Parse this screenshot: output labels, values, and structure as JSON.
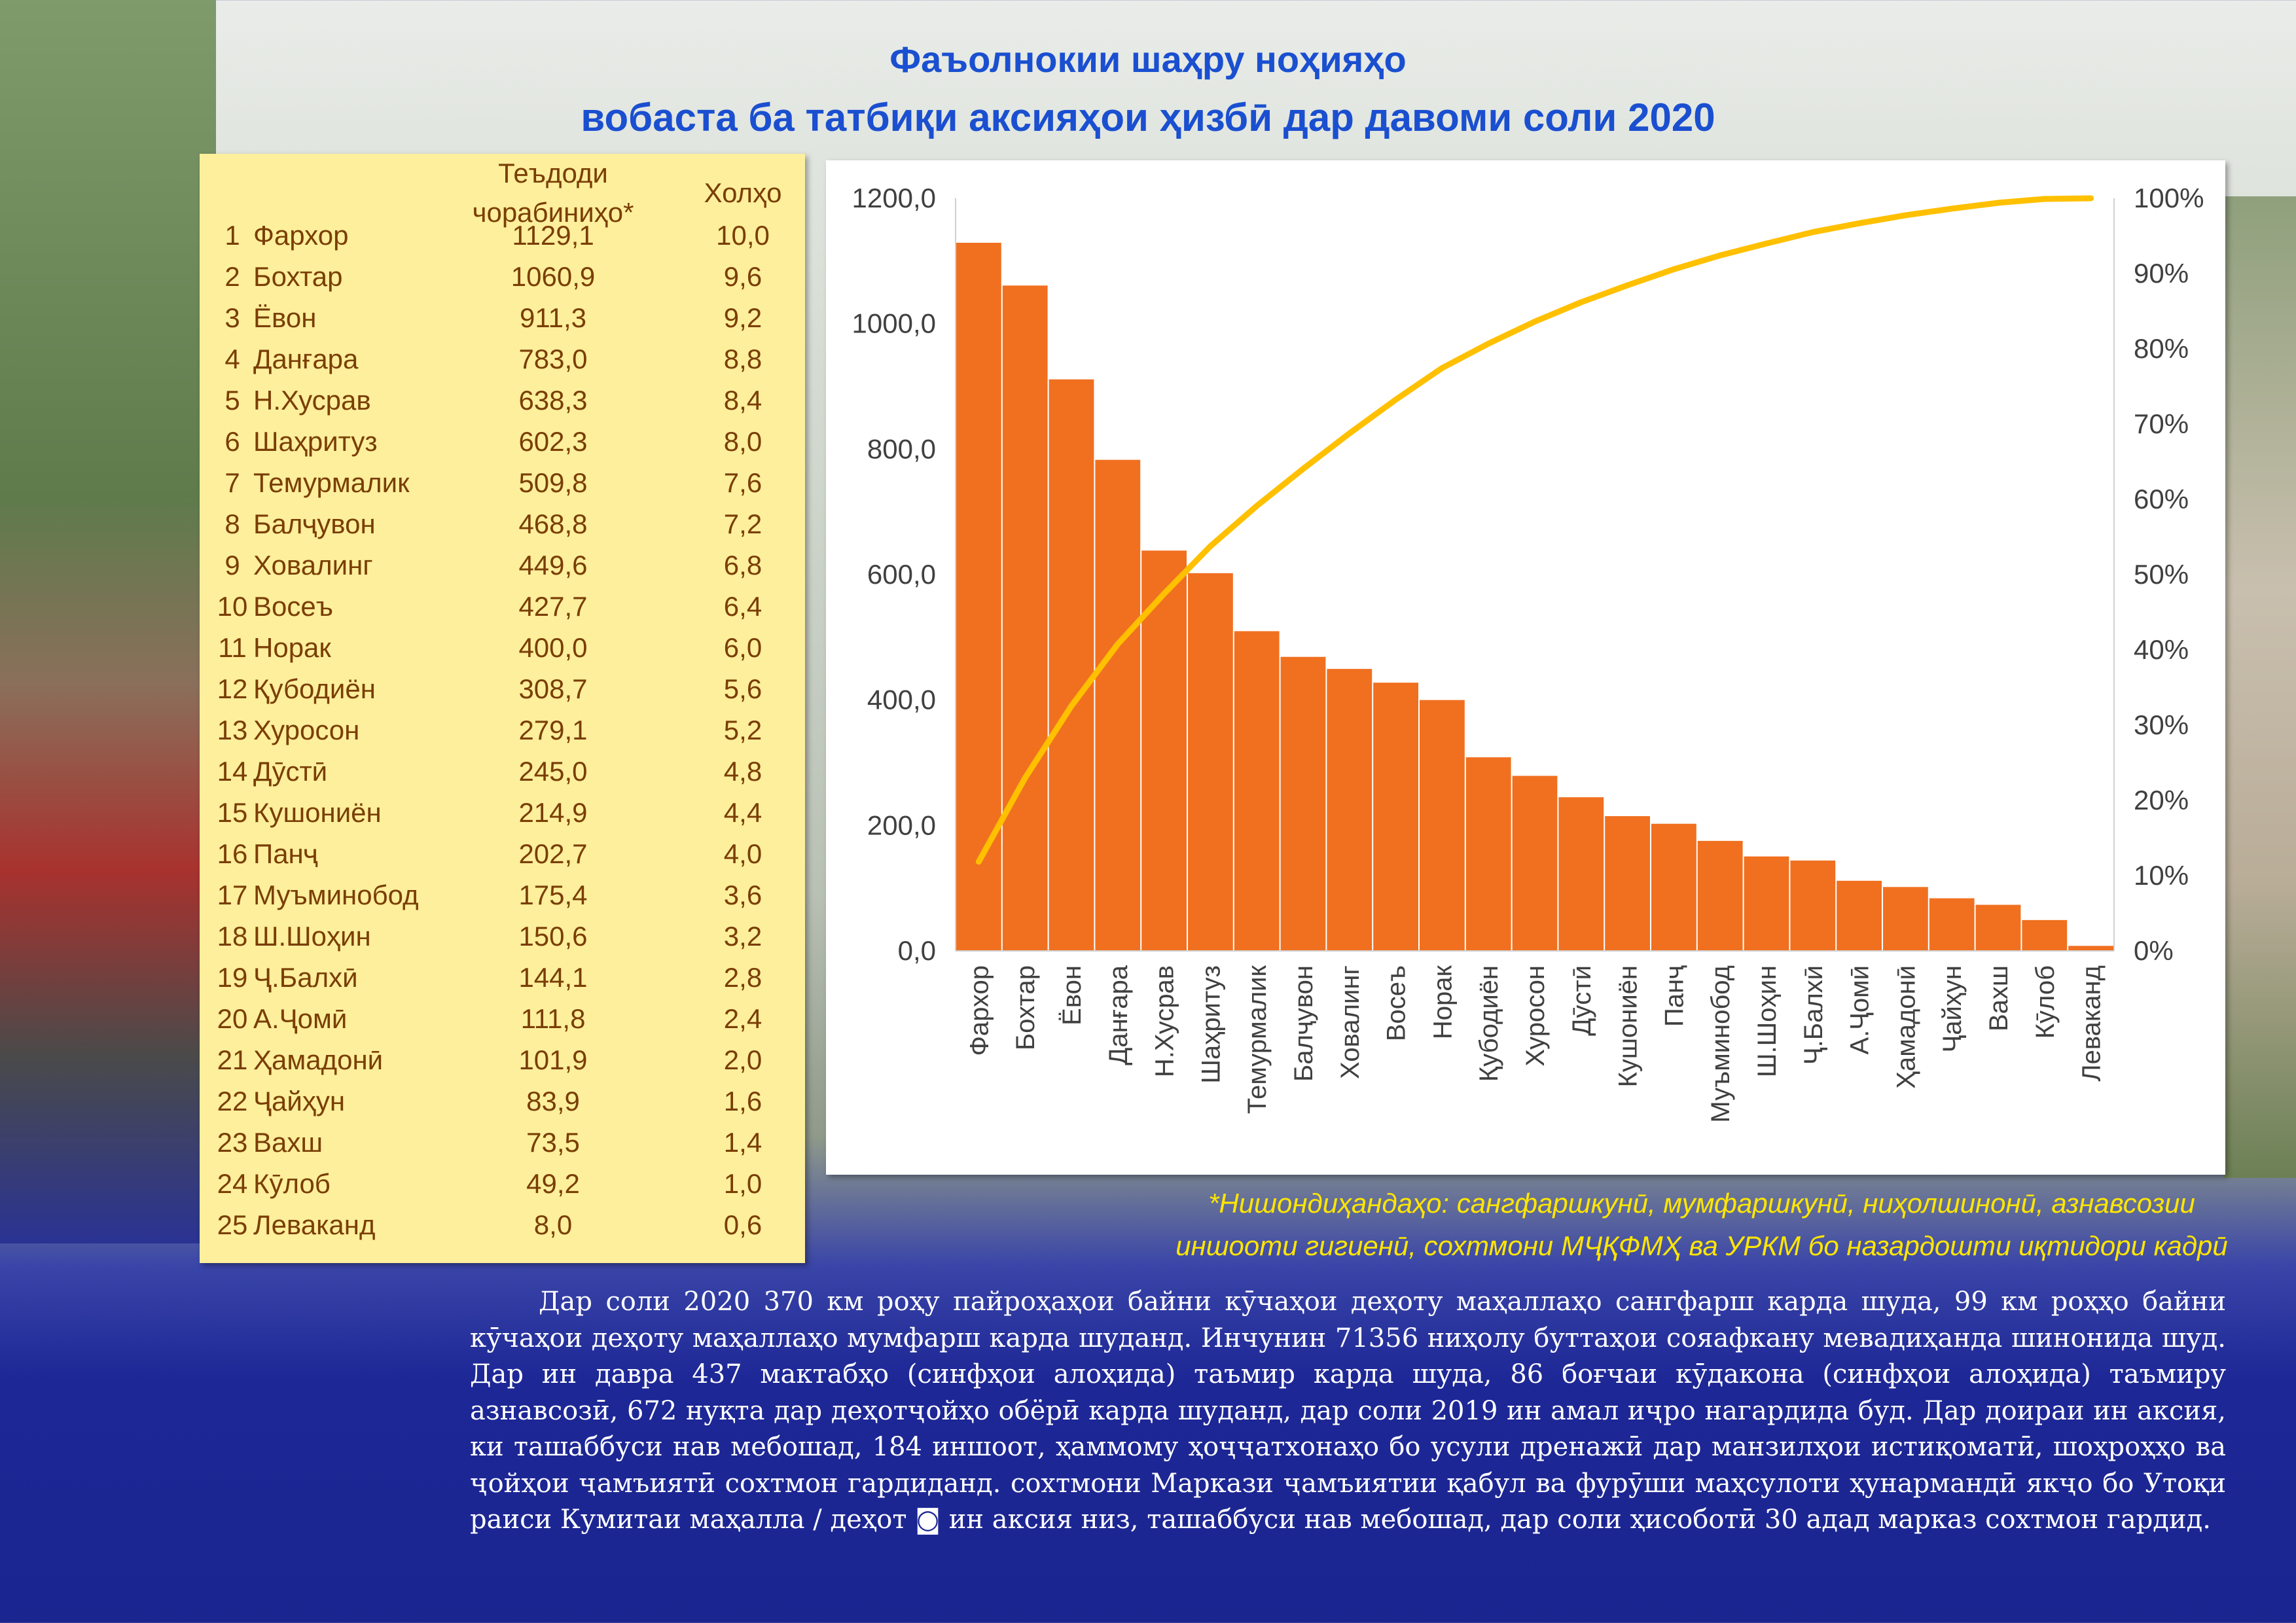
{
  "title": {
    "line1": "Фаъолнокии шаҳру ноҳияҳо",
    "line2": "вобаста ба татбиқи аксияҳои ҳизбӣ дар давоми соли 2020"
  },
  "table": {
    "header_value": "Теъдоди чорабиниҳо*",
    "header_points": "Холҳо",
    "rows": [
      {
        "n": "1",
        "name": "Фархор",
        "value": "1129,1",
        "points": "10,0"
      },
      {
        "n": "2",
        "name": "Бохтар",
        "value": "1060,9",
        "points": "9,6"
      },
      {
        "n": "3",
        "name": "Ёвон",
        "value": "911,3",
        "points": "9,2"
      },
      {
        "n": "4",
        "name": "Данғара",
        "value": "783,0",
        "points": "8,8"
      },
      {
        "n": "5",
        "name": "Н.Хусрав",
        "value": "638,3",
        "points": "8,4"
      },
      {
        "n": "6",
        "name": "Шаҳритуз",
        "value": "602,3",
        "points": "8,0"
      },
      {
        "n": "7",
        "name": "Темурмалик",
        "value": "509,8",
        "points": "7,6"
      },
      {
        "n": "8",
        "name": "Балҷувон",
        "value": "468,8",
        "points": "7,2"
      },
      {
        "n": "9",
        "name": "Ховалинг",
        "value": "449,6",
        "points": "6,8"
      },
      {
        "n": "10",
        "name": "Восеъ",
        "value": "427,7",
        "points": "6,4"
      },
      {
        "n": "11",
        "name": "Норак",
        "value": "400,0",
        "points": "6,0"
      },
      {
        "n": "12",
        "name": "Қубодиён",
        "value": "308,7",
        "points": "5,6"
      },
      {
        "n": "13",
        "name": "Хуросон",
        "value": "279,1",
        "points": "5,2"
      },
      {
        "n": "14",
        "name": "Дӯстӣ",
        "value": "245,0",
        "points": "4,8"
      },
      {
        "n": "15",
        "name": "Кушониён",
        "value": "214,9",
        "points": "4,4"
      },
      {
        "n": "16",
        "name": "Панҷ",
        "value": "202,7",
        "points": "4,0"
      },
      {
        "n": "17",
        "name": "Муъминобод",
        "value": "175,4",
        "points": "3,6"
      },
      {
        "n": "18",
        "name": "Ш.Шоҳин",
        "value": "150,6",
        "points": "3,2"
      },
      {
        "n": "19",
        "name": "Ҷ.Балхӣ",
        "value": "144,1",
        "points": "2,8"
      },
      {
        "n": "20",
        "name": "А.Ҷомӣ",
        "value": "111,8",
        "points": "2,4"
      },
      {
        "n": "21",
        "name": "Ҳамадонӣ",
        "value": "101,9",
        "points": "2,0"
      },
      {
        "n": "22",
        "name": "Ҷайҳун",
        "value": "83,9",
        "points": "1,6"
      },
      {
        "n": "23",
        "name": "Вахш",
        "value": "73,5",
        "points": "1,4"
      },
      {
        "n": "24",
        "name": "Кӯлоб",
        "value": "49,2",
        "points": "1,0"
      },
      {
        "n": "25",
        "name": "Леваканд",
        "value": "8,0",
        "points": "0,6"
      }
    ]
  },
  "chart_data": {
    "type": "bar",
    "categories": [
      "Фархор",
      "Бохтар",
      "Ёвон",
      "Данғара",
      "Н.Хусрав",
      "Шаҳритуз",
      "Темурмалик",
      "Балҷувон",
      "Ховалинг",
      "Восеъ",
      "Норак",
      "Қубодиён",
      "Хуросон",
      "Дӯстӣ",
      "Кушониён",
      "Панҷ",
      "Муъминобод",
      "Ш.Шоҳин",
      "Ҷ.Балхӣ",
      "А.Ҷомӣ",
      "Ҳамадонӣ",
      "Ҷайҳун",
      "Вахш",
      "Кӯлоб",
      "Леваканд"
    ],
    "series": [
      {
        "type": "bar",
        "axis": "left",
        "values": [
          1129.1,
          1060.9,
          911.3,
          783.0,
          638.3,
          602.3,
          509.8,
          468.8,
          449.6,
          427.7,
          400.0,
          308.7,
          279.1,
          245.0,
          214.9,
          202.7,
          175.4,
          150.6,
          144.1,
          111.8,
          101.9,
          83.9,
          73.5,
          49.2,
          8.0
        ],
        "color": "#f07020"
      },
      {
        "type": "line",
        "axis": "right",
        "values": "cumulative percent of bar values",
        "color": "#ffc000"
      }
    ],
    "ylim": [
      0,
      1200
    ],
    "yticks": [
      "0,0",
      "200,0",
      "400,0",
      "600,0",
      "800,0",
      "1000,0",
      "1200,0"
    ],
    "y2lim": [
      0,
      100
    ],
    "y2ticks": [
      "0%",
      "10%",
      "20%",
      "30%",
      "40%",
      "50%",
      "60%",
      "70%",
      "80%",
      "90%",
      "100%"
    ],
    "grid": false,
    "legend": "none"
  },
  "footnote": {
    "line1": "*Нишондиҳандаҳо: сангфаршкунӣ, мумфаршкунӣ, ниҳолшинонӣ, азнавсозии",
    "line2": "иншооти гигиенӣ, сохтмони МҶҚФМҲ ва УРКМ бо назардошти иқтидори кадрӣ"
  },
  "paragraph": "Дар соли 2020 370 км роҳу пайроҳаҳои байни кӯчаҳои деҳоту маҳаллаҳо сангфарш карда шуда, 99 км роҳҳо байни кӯчаҳои деҳоту маҳаллаҳо мумфарш карда шуданд. Инчунин 71356 ниҳолу буттаҳои сояафкану мевадиҳанда шинонида шуд. Дар ин давра 437 мактабҳо (синфҳои алоҳида) таъмир карда шуда, 86 боғчаи кӯдакона (синфҳои алоҳида) таъмиру азнавсозӣ, 672 нуқта дар деҳотҷойҳо обёрӣ карда шуданд, дар соли 2019 ин амал иҷро нагардида буд. Дар доираи ин аксия, ки ташаббуси нав мебошад, 184 иншоот, ҳаммому ҳоҷҷатхонаҳо бо усули дренажӣ дар манзилҳои истиқоматӣ, шоҳроҳҳо ва ҷойҳои ҷамъиятӣ сохтмон гардиданд. сохтмони Маркази ҷамъиятии қабул ва фурӯши маҳсулоти ҳунармандӣ якҷо бо Утоқи раиси Кумитаи маҳалла / деҳот ◙ ин аксия низ, ташаббуси нав мебошад, дар соли ҳисоботӣ 30 адад марказ сохтмон гардид."
}
